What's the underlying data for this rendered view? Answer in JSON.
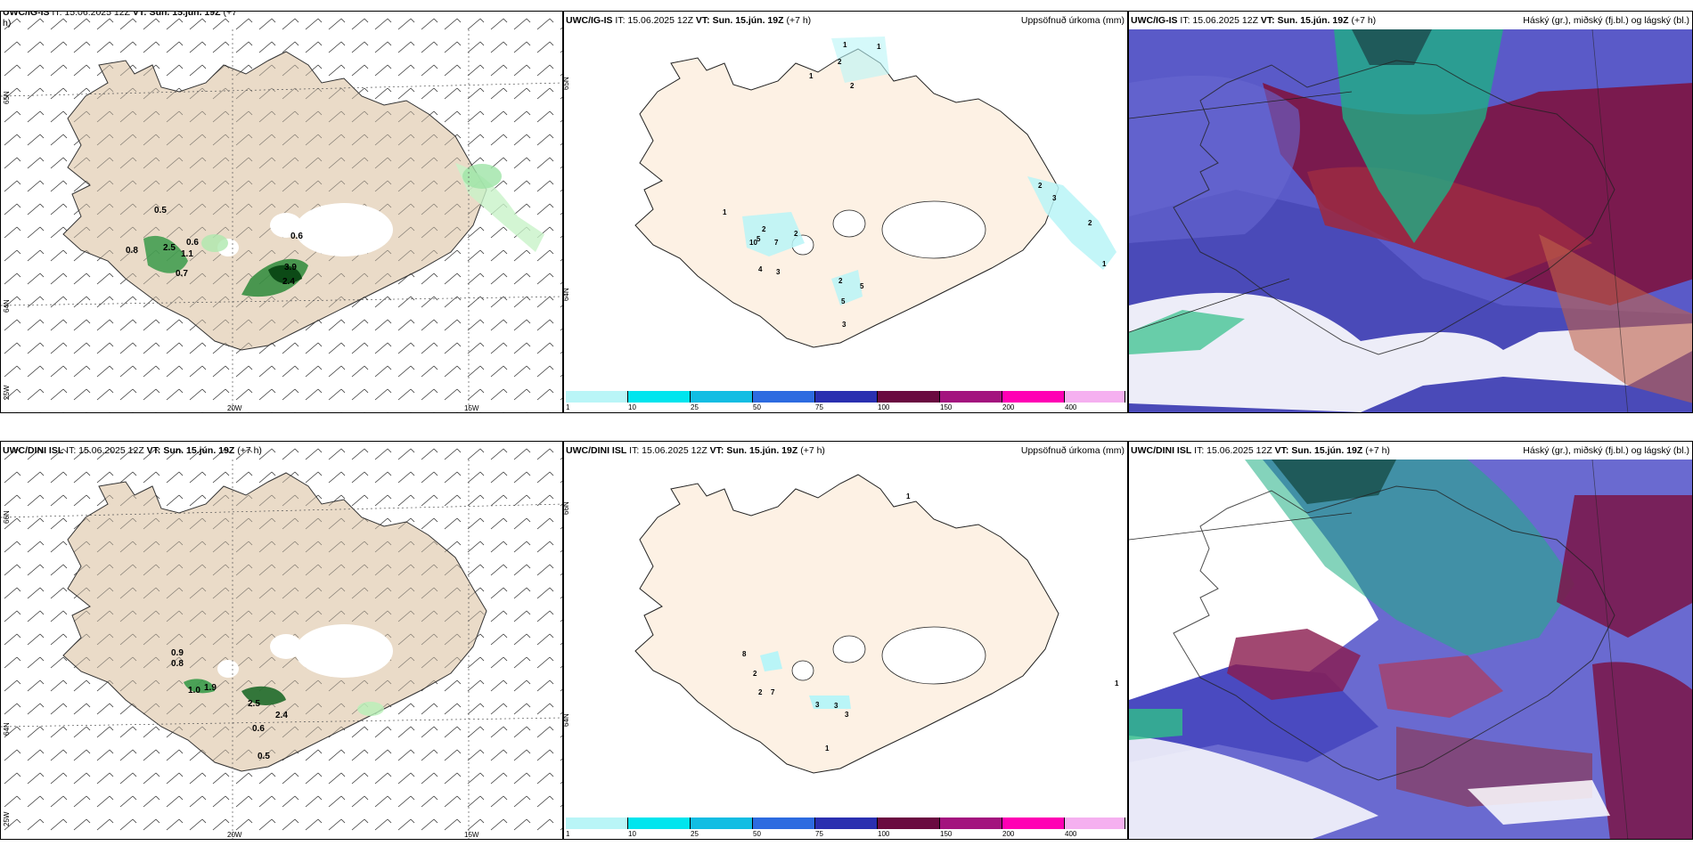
{
  "panels": {
    "top_left": {
      "model": "UWC/IG-IS",
      "it": "IT: 15.06.2025 12Z",
      "vt_label": "VT:",
      "vt": "Sun. 15.jún. 19Z",
      "lead": "(+7",
      "lead2": "h)",
      "lat_labels": [
        "65N",
        "64N",
        "25W"
      ],
      "lon_labels": [
        "20W",
        "15W"
      ],
      "values": [
        "0.5",
        "0.6",
        "0.6",
        "0.7",
        "0.8",
        "2.5",
        "1.1",
        "3.9",
        "2.4"
      ]
    },
    "top_mid": {
      "model": "UWC/IG-IS",
      "it": "IT: 15.06.2025 12Z",
      "vt_label": "VT:",
      "vt": "Sun. 15.jún. 19Z",
      "lead": "(+7 h)",
      "right_title": "Uppsöfnuð úrkoma (mm)",
      "lat_labels": [
        "65N",
        "64N"
      ],
      "values": [
        "1",
        "1",
        "2",
        "1",
        "2",
        "1",
        "2",
        "5",
        "10",
        "7",
        "2",
        "4",
        "3",
        "2",
        "5",
        "5",
        "3",
        "2",
        "3",
        "2",
        "1"
      ]
    },
    "top_right": {
      "model": "UWC/IG-IS",
      "it": "IT: 15.06.2025 12Z",
      "vt_label": "VT:",
      "vt": "Sun. 15.jún. 19Z",
      "lead": "(+7 h)",
      "right_title": "Háský (gr.), miðský (fj.bl.) og lágský (bl.)"
    },
    "bottom_left": {
      "model": "UWC/DINI ISL",
      "it": "IT: 15.06.2025 12Z",
      "vt_label": "VT:",
      "vt": "Sun. 15.jún. 19Z",
      "lead": "(+7 h)",
      "lat_labels": [
        "66N",
        "64N",
        "25W"
      ],
      "lon_labels": [
        "20W",
        "15W"
      ],
      "values": [
        "0.9",
        "0.8",
        "1.0",
        "1.9",
        "2.5",
        "2.4",
        "0.6",
        "0.5"
      ]
    },
    "bottom_mid": {
      "model": "UWC/DINI ISL",
      "it": "IT: 15.06.2025 12Z",
      "vt_label": "VT:",
      "vt": "Sun. 15.jún. 19Z",
      "lead": "(+7 h)",
      "right_title": "Uppsöfnuð úrkoma (mm)",
      "lat_labels": [
        "66N",
        "64N"
      ],
      "values": [
        "1",
        "8",
        "2",
        "2",
        "7",
        "3",
        "3",
        "3",
        "1",
        "1"
      ]
    },
    "bottom_right": {
      "model": "UWC/DINI ISL",
      "it": "IT: 15.06.2025 12Z",
      "vt_label": "VT:",
      "vt": "Sun. 15.jún. 19Z",
      "lead": "(+7 h)",
      "right_title": "Háský (gr.), miðský (fj.bl.) og lágský (bl.)"
    }
  },
  "colorbar": {
    "ticks": [
      "1",
      "10",
      "25",
      "50",
      "75",
      "100",
      "150",
      "200",
      "400"
    ],
    "colors": [
      "#b9f5f7",
      "#00e5ee",
      "#12bde3",
      "#2d6be0",
      "#2a2fb0",
      "#6a0a40",
      "#a3137e",
      "#ff00b4",
      "#f5b0f0"
    ]
  },
  "colors": {
    "land": "#eadbc8",
    "land_precip": "#fdf1e4",
    "rain_green": "#2e8b3a",
    "light_green": "#b8f0b8",
    "cloud_high": "#6a1a4a",
    "cloud_mid": "#3aa07a",
    "cloud_low": "#5a5ac8"
  }
}
